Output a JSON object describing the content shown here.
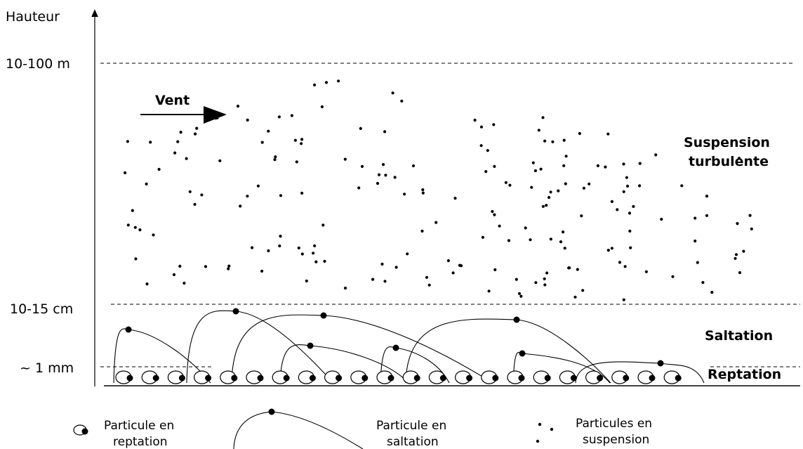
{
  "axis": {
    "label": "Hauteur",
    "levels": [
      "10-100 m",
      "10-15 cm",
      "~ 1 mm"
    ]
  },
  "wind": {
    "label": "Vent"
  },
  "zones": {
    "suspension": [
      "Suspension",
      "turbulente"
    ],
    "saltation": "Saltation",
    "reptation": "Reptation"
  },
  "legend": {
    "reptation": [
      "Particule en",
      "reptation"
    ],
    "saltation": [
      "Particule en",
      "saltation"
    ],
    "suspension": [
      "Particules en",
      "suspension"
    ]
  },
  "icons": {
    "reptation_particle": "outlined-ellipse-with-black-dot",
    "saltation_particle": "black-dot-on-arc",
    "suspension_particle": "small-black-dots",
    "height_axis": "up-arrow",
    "wind": "right-arrow"
  },
  "colors": {
    "ink": "#000000",
    "background": "#ffffff"
  }
}
